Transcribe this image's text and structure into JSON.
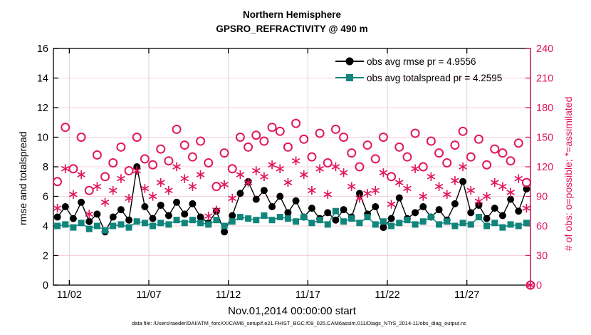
{
  "figure": {
    "title_line1": "Northern Hemisphere",
    "title_line2": "GPSRO_REFRACTIVITY @ 490 m",
    "xlabel": "Nov.01,2014 00:00:00 start",
    "ylabel_left": "rmse and totalspread",
    "ylabel_right": "# of obs: o=possible; *=assimilated",
    "caption": "data file: /Users/raeder/DAI/ATM_forcXX/CAM6_setup/f.e21.FHIST_BGC.f09_025.CAM6assim.011/Diags_NTrS_2014-11/obs_diag_output.nc",
    "legend": [
      {
        "label": "obs avg rmse pr = 4.9556",
        "marker": "filled-circle",
        "color": "#000000"
      },
      {
        "label": "obs avg totalspread pr = 4.2595",
        "marker": "filled-square",
        "color": "#10857b"
      }
    ],
    "colors": {
      "rmse": "#000000",
      "totalspread": "#10857b",
      "obs_counts": "#e01760",
      "grid_horizontal": "#f9d0de",
      "grid_vertical": "#d6d6d6",
      "axis_box": "#000000"
    }
  },
  "chart_data": {
    "type": "line",
    "title": "Northern Hemisphere — GPSRO_REFRACTIVITY @ 490 m",
    "xlabel": "Nov.01,2014 00:00:00 start",
    "ylabel_left": "rmse and totalspread",
    "ylabel_right": "# of obs: o=possible; *=assimilated",
    "xlim_days": [
      1,
      31
    ],
    "ylim_left": [
      0,
      16
    ],
    "ylim_right": [
      0,
      240
    ],
    "yticks_left": [
      0,
      2,
      4,
      6,
      8,
      10,
      12,
      14,
      16
    ],
    "yticks_right": [
      0,
      30,
      60,
      90,
      120,
      150,
      180,
      210,
      240
    ],
    "x_ticks": [
      {
        "day": 2,
        "label": "11/02"
      },
      {
        "day": 7,
        "label": "11/07"
      },
      {
        "day": 12,
        "label": "11/12"
      },
      {
        "day": 17,
        "label": "11/17"
      },
      {
        "day": 22,
        "label": "11/22"
      },
      {
        "day": 27,
        "label": "11/27"
      }
    ],
    "x_days": [
      1.25,
      1.75,
      2.25,
      2.75,
      3.25,
      3.75,
      4.25,
      4.75,
      5.25,
      5.75,
      6.25,
      6.75,
      7.25,
      7.75,
      8.25,
      8.75,
      9.25,
      9.75,
      10.25,
      10.75,
      11.25,
      11.75,
      12.25,
      12.75,
      13.25,
      13.75,
      14.25,
      14.75,
      15.25,
      15.75,
      16.25,
      16.75,
      17.25,
      17.75,
      18.25,
      18.75,
      19.25,
      19.75,
      20.25,
      20.75,
      21.25,
      21.75,
      22.25,
      22.75,
      23.25,
      23.75,
      24.25,
      24.75,
      25.25,
      25.75,
      26.25,
      26.75,
      27.25,
      27.75,
      28.25,
      28.75,
      29.25,
      29.75,
      30.25,
      30.75
    ],
    "series": [
      {
        "name": "obs avg rmse",
        "legend": "obs avg rmse pr = 4.9556",
        "axis": "left",
        "marker": "filled-circle",
        "line": true,
        "color": "#000000",
        "values": [
          4.6,
          5.3,
          4.5,
          5.6,
          4.3,
          4.8,
          3.6,
          4.6,
          5.1,
          4.4,
          8.0,
          5.3,
          4.5,
          5.4,
          4.7,
          5.6,
          4.8,
          5.5,
          4.6,
          4.2,
          5.0,
          3.6,
          4.7,
          6.2,
          7.0,
          5.8,
          6.4,
          5.3,
          6.0,
          4.9,
          5.7,
          4.6,
          5.2,
          4.5,
          4.9,
          4.4,
          5.1,
          4.6,
          6.2,
          4.8,
          5.3,
          3.9,
          4.5,
          5.9,
          4.5,
          4.9,
          5.3,
          4.6,
          5.1,
          4.4,
          5.5,
          7.0,
          4.9,
          5.4,
          4.5,
          5.2,
          4.7,
          5.8,
          5.0,
          6.5
        ]
      },
      {
        "name": "obs avg totalspread",
        "legend": "obs avg totalspread pr = 4.2595",
        "axis": "left",
        "marker": "filled-square",
        "line": true,
        "color": "#10857b",
        "values": [
          4.0,
          4.1,
          3.9,
          4.2,
          3.8,
          4.0,
          3.7,
          4.0,
          4.1,
          3.9,
          4.3,
          4.2,
          4.0,
          4.2,
          4.1,
          4.4,
          4.2,
          4.4,
          4.2,
          4.1,
          4.4,
          4.0,
          4.3,
          4.6,
          4.5,
          4.4,
          4.7,
          4.4,
          4.6,
          4.5,
          4.3,
          4.6,
          4.2,
          4.4,
          4.1,
          5.0,
          4.3,
          4.5,
          4.2,
          4.6,
          4.1,
          4.3,
          4.0,
          4.2,
          4.4,
          4.1,
          4.3,
          4.6,
          4.1,
          4.3,
          4.0,
          4.2,
          4.1,
          4.6,
          4.0,
          4.2,
          3.9,
          4.1,
          4.0,
          4.2
        ]
      },
      {
        "name": "possible obs",
        "legend": "o = possible",
        "axis": "right",
        "marker": "open-circle",
        "line": false,
        "color": "#e01760",
        "values": [
          105,
          160,
          118,
          150,
          96,
          132,
          110,
          124,
          140,
          116,
          150,
          128,
          122,
          138,
          126,
          158,
          142,
          130,
          146,
          124,
          100,
          134,
          118,
          150,
          140,
          152,
          146,
          160,
          156,
          140,
          164,
          148,
          130,
          154,
          124,
          158,
          150,
          134,
          120,
          142,
          128,
          150,
          110,
          140,
          130,
          154,
          120,
          146,
          134,
          124,
          142,
          156,
          130,
          148,
          122,
          138,
          134,
          126,
          144,
          104
        ]
      },
      {
        "name": "assimilated obs",
        "legend": "* = assimilated",
        "axis": "right",
        "marker": "asterisk",
        "line": false,
        "color": "#e01760",
        "values": [
          78,
          118,
          92,
          112,
          72,
          100,
          84,
          96,
          108,
          88,
          116,
          98,
          90,
          104,
          96,
          120,
          108,
          100,
          112,
          70,
          76,
          102,
          88,
          112,
          104,
          116,
          110,
          122,
          118,
          104,
          126,
          112,
          96,
          118,
          92,
          120,
          114,
          100,
          88,
          93,
          96,
          114,
          82,
          104,
          98,
          118,
          90,
          110,
          100,
          92,
          106,
          120,
          96,
          85,
          90,
          104,
          100,
          94,
          108,
          78
        ]
      }
    ],
    "terminal_zero_point": {
      "x_day": 31,
      "possible": 0,
      "assimilated": 0
    }
  }
}
